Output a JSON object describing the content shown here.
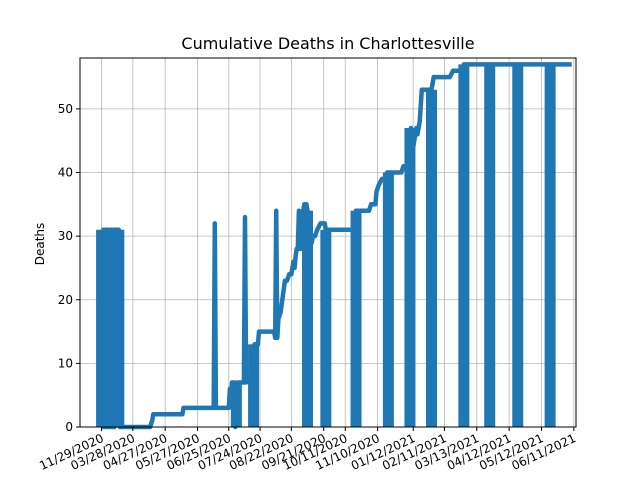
{
  "chart_data": {
    "type": "line",
    "title": "Cumulative Deaths in Charlottesville",
    "xlabel": "",
    "ylabel": "Deaths",
    "ylim": [
      0,
      58
    ],
    "xlim": [
      -20,
      440
    ],
    "grid": true,
    "color": "#1f77b4",
    "x_ticks": [
      {
        "pos": 0,
        "label": "11/29/2020"
      },
      {
        "pos": 29,
        "label": "03/28/2020"
      },
      {
        "pos": 59,
        "label": "04/27/2020"
      },
      {
        "pos": 89,
        "label": "05/27/2020"
      },
      {
        "pos": 118,
        "label": "06/25/2020"
      },
      {
        "pos": 147,
        "label": "07/24/2020"
      },
      {
        "pos": 176,
        "label": "08/22/2020"
      },
      {
        "pos": 206,
        "label": "09/21/2020"
      },
      {
        "pos": 226,
        "label": "10/11/2020"
      },
      {
        "pos": 256,
        "label": "11/10/2020"
      },
      {
        "pos": 289,
        "label": "01/12/2021"
      },
      {
        "pos": 318,
        "label": "02/11/2021"
      },
      {
        "pos": 348,
        "label": "03/13/2021"
      },
      {
        "pos": 378,
        "label": "04/12/2021"
      },
      {
        "pos": 408,
        "label": "05/12/2021"
      },
      {
        "pos": 438,
        "label": "06/11/2021"
      }
    ],
    "y_ticks": [
      0,
      10,
      20,
      30,
      40,
      50
    ],
    "series": [
      {
        "points": [
          [
            0,
            31
          ],
          [
            2,
            31
          ],
          [
            2,
            0
          ],
          [
            4,
            0
          ],
          [
            4,
            31
          ],
          [
            6,
            31
          ],
          [
            6,
            0
          ],
          [
            8,
            0
          ],
          [
            8,
            31
          ],
          [
            10,
            31
          ],
          [
            10,
            0
          ],
          [
            12,
            0
          ],
          [
            12,
            31
          ],
          [
            14,
            31
          ],
          [
            14,
            31
          ],
          [
            16,
            31
          ],
          [
            17,
            0
          ],
          [
            45,
            0
          ],
          [
            47,
            1
          ],
          [
            48,
            2
          ],
          [
            75,
            2
          ],
          [
            76,
            3
          ],
          [
            104,
            3
          ],
          [
            105,
            32
          ],
          [
            106,
            3
          ],
          [
            118,
            3
          ],
          [
            119,
            6
          ],
          [
            120,
            5
          ],
          [
            121,
            7
          ],
          [
            123,
            7
          ],
          [
            124,
            0
          ],
          [
            126,
            7
          ],
          [
            132,
            7
          ],
          [
            133,
            33
          ],
          [
            134,
            7
          ],
          [
            135,
            8
          ],
          [
            140,
            8
          ],
          [
            142,
            13
          ],
          [
            143,
            13
          ],
          [
            145,
            13
          ],
          [
            146,
            15
          ],
          [
            160,
            15
          ],
          [
            161,
            14
          ],
          [
            162,
            34
          ],
          [
            163,
            14
          ],
          [
            164,
            17
          ],
          [
            166,
            18
          ],
          [
            170,
            23
          ],
          [
            172,
            23
          ],
          [
            174,
            24
          ],
          [
            176,
            24
          ],
          [
            177,
            25
          ],
          [
            178,
            26
          ],
          [
            179,
            25
          ],
          [
            180,
            27
          ],
          [
            181,
            28
          ],
          [
            182,
            28
          ],
          [
            183,
            34
          ],
          [
            184,
            28
          ],
          [
            186,
            28
          ],
          [
            187,
            34
          ],
          [
            188,
            35
          ],
          [
            190,
            35
          ],
          [
            191,
            34
          ],
          [
            193,
            33
          ],
          [
            194,
            30
          ],
          [
            195,
            29
          ],
          [
            196,
            30
          ],
          [
            198,
            30
          ],
          [
            200,
            31
          ],
          [
            203,
            32
          ],
          [
            207,
            32
          ],
          [
            208,
            31
          ],
          [
            228,
            31
          ],
          [
            234,
            31
          ],
          [
            236,
            34
          ],
          [
            248,
            34
          ],
          [
            250,
            35
          ],
          [
            254,
            35
          ],
          [
            255,
            37
          ],
          [
            257,
            38
          ],
          [
            260,
            39
          ],
          [
            263,
            39
          ],
          [
            265,
            40
          ],
          [
            278,
            40
          ],
          [
            280,
            41
          ],
          [
            284,
            41
          ],
          [
            286,
            45
          ],
          [
            287,
            47
          ],
          [
            288,
            45
          ],
          [
            289,
            44
          ],
          [
            291,
            46
          ],
          [
            292,
            47
          ],
          [
            293,
            46
          ],
          [
            295,
            48
          ],
          [
            297,
            53
          ],
          [
            306,
            53
          ],
          [
            308,
            55
          ],
          [
            321,
            55
          ],
          [
            323,
            55
          ],
          [
            326,
            56
          ],
          [
            334,
            56
          ],
          [
            336,
            57
          ],
          [
            360,
            57
          ],
          [
            363,
            57
          ],
          [
            386,
            57
          ],
          [
            388,
            57
          ],
          [
            416,
            57
          ],
          [
            418,
            57
          ],
          [
            428,
            57
          ],
          [
            436,
            57
          ]
        ],
        "bars": [
          [
            0,
            31
          ],
          [
            4,
            31
          ],
          [
            8,
            31
          ],
          [
            12,
            31
          ],
          [
            16,
            31
          ],
          [
            125,
            7
          ],
          [
            141,
            13
          ],
          [
            191,
            34
          ],
          [
            208,
            31
          ],
          [
            236,
            34
          ],
          [
            266,
            40
          ],
          [
            286,
            47
          ],
          [
            306,
            53
          ],
          [
            336,
            57
          ],
          [
            360,
            57
          ],
          [
            386,
            57
          ],
          [
            416,
            57
          ]
        ]
      }
    ]
  }
}
